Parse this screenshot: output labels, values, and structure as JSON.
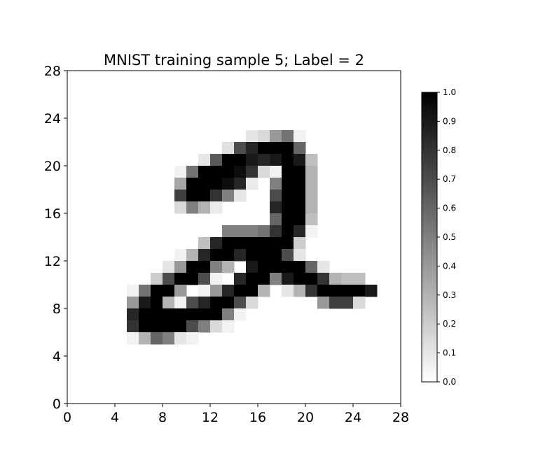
{
  "chart_data": {
    "type": "heatmap",
    "title": "MNIST training sample 5; Label = 2",
    "xlabel": "",
    "ylabel": "",
    "xlim": [
      0,
      28
    ],
    "ylim": [
      0,
      28
    ],
    "x_ticks": [
      "0",
      "4",
      "8",
      "12",
      "16",
      "20",
      "24",
      "28"
    ],
    "y_ticks": [
      "0",
      "4",
      "8",
      "12",
      "16",
      "20",
      "24",
      "28"
    ],
    "colormap": "gray_r",
    "colorbar": {
      "range": [
        0,
        1
      ],
      "ticks": [
        "0.0",
        "0.1",
        "0.2",
        "0.3",
        "0.4",
        "0.5",
        "0.6",
        "0.7",
        "0.8",
        "0.9",
        "1.0"
      ]
    },
    "grid": false,
    "rows_top_to_bottom": [
      [
        0,
        0,
        0,
        0,
        0,
        0,
        0,
        0,
        0,
        0,
        0,
        0,
        0,
        0,
        0,
        0,
        0,
        0,
        0,
        0,
        0,
        0,
        0,
        0,
        0,
        0,
        0,
        0
      ],
      [
        0,
        0,
        0,
        0,
        0,
        0,
        0,
        0,
        0,
        0,
        0,
        0,
        0,
        0,
        0,
        0,
        0,
        0,
        0,
        0,
        0,
        0,
        0,
        0,
        0,
        0,
        0,
        0
      ],
      [
        0,
        0,
        0,
        0,
        0,
        0,
        0,
        0,
        0,
        0,
        0,
        0,
        0,
        0,
        0,
        0,
        0,
        0,
        0,
        0,
        0,
        0,
        0,
        0,
        0,
        0,
        0,
        0
      ],
      [
        0,
        0,
        0,
        0,
        0,
        0,
        0,
        0,
        0,
        0,
        0,
        0,
        0,
        0,
        0,
        0,
        0,
        0,
        0,
        0,
        0,
        0,
        0,
        0,
        0,
        0,
        0,
        0
      ],
      [
        0,
        0,
        0,
        0,
        0,
        0,
        0,
        0,
        0,
        0,
        0,
        0,
        0,
        0,
        0,
        0,
        0,
        0,
        0,
        0,
        0,
        0,
        0,
        0,
        0,
        0,
        0,
        0
      ],
      [
        0,
        0,
        0,
        0,
        0,
        0,
        0,
        0,
        0,
        0,
        0,
        0,
        0,
        0,
        0,
        0.1,
        0.15,
        0.4,
        0.55,
        0.05,
        0,
        0,
        0,
        0,
        0,
        0,
        0,
        0
      ],
      [
        0,
        0,
        0,
        0,
        0,
        0,
        0,
        0,
        0,
        0,
        0,
        0,
        0,
        0.12,
        0.7,
        0.85,
        1,
        1,
        1,
        0.6,
        0,
        0,
        0,
        0,
        0,
        0,
        0,
        0
      ],
      [
        0,
        0,
        0,
        0,
        0,
        0,
        0,
        0,
        0,
        0,
        0,
        0.1,
        0.65,
        1,
        1,
        0.9,
        0.85,
        0.9,
        1,
        0.9,
        0.25,
        0,
        0,
        0,
        0,
        0,
        0,
        0
      ],
      [
        0,
        0,
        0,
        0,
        0,
        0,
        0,
        0,
        0,
        0.05,
        0.55,
        1,
        1,
        1,
        0.95,
        0.8,
        0.15,
        0.05,
        1,
        1,
        0.3,
        0,
        0,
        0,
        0,
        0,
        0,
        0
      ],
      [
        0,
        0,
        0,
        0,
        0,
        0,
        0,
        0,
        0,
        0.35,
        1,
        1,
        1,
        0.95,
        0.85,
        0.08,
        0,
        0.5,
        1,
        1,
        0.3,
        0,
        0,
        0,
        0,
        0,
        0,
        0
      ],
      [
        0,
        0,
        0,
        0,
        0,
        0,
        0,
        0,
        0,
        0.75,
        1,
        1,
        0.8,
        0.5,
        0.1,
        0,
        0,
        0.7,
        1,
        1,
        0.3,
        0,
        0,
        0,
        0,
        0,
        0,
        0
      ],
      [
        0,
        0,
        0,
        0,
        0,
        0,
        0,
        0,
        0,
        0.15,
        0.5,
        0.3,
        0.08,
        0,
        0,
        0,
        0,
        0.85,
        1,
        1,
        0.3,
        0,
        0,
        0,
        0,
        0,
        0,
        0
      ],
      [
        0,
        0,
        0,
        0,
        0,
        0,
        0,
        0,
        0,
        0,
        0,
        0,
        0,
        0,
        0,
        0,
        0,
        0.6,
        1,
        1,
        0.25,
        0,
        0,
        0,
        0,
        0,
        0,
        0
      ],
      [
        0,
        0,
        0,
        0,
        0,
        0,
        0,
        0,
        0,
        0,
        0,
        0,
        0,
        0.5,
        0.5,
        0.5,
        0.55,
        0.8,
        1,
        0.85,
        0.05,
        0,
        0,
        0,
        0,
        0,
        0,
        0
      ],
      [
        0,
        0,
        0,
        0,
        0,
        0,
        0,
        0,
        0,
        0,
        0,
        0.25,
        0.85,
        1,
        1,
        1,
        1,
        1,
        1,
        0.2,
        0,
        0,
        0,
        0,
        0,
        0,
        0,
        0
      ],
      [
        0,
        0,
        0,
        0,
        0,
        0,
        0,
        0,
        0,
        0.05,
        0.3,
        0.85,
        1,
        1,
        0.85,
        1,
        1,
        1,
        0.7,
        0.1,
        0,
        0,
        0,
        0,
        0,
        0,
        0,
        0
      ],
      [
        0,
        0,
        0,
        0,
        0,
        0,
        0,
        0,
        0.1,
        0.4,
        1,
        1,
        0.5,
        0.3,
        0,
        0.9,
        1,
        1,
        1,
        1,
        0.6,
        0.1,
        0,
        0,
        0,
        0,
        0,
        0
      ],
      [
        0,
        0,
        0,
        0,
        0,
        0,
        0,
        0.2,
        0.7,
        1,
        1,
        0.7,
        0.05,
        0,
        0.85,
        1,
        1,
        0.5,
        0.9,
        1,
        1,
        0.8,
        0.3,
        0.25,
        0.25,
        0,
        0,
        0
      ],
      [
        0,
        0,
        0,
        0,
        0,
        0.05,
        0.55,
        1,
        1,
        0.4,
        0,
        0.05,
        0.4,
        0.85,
        1,
        1,
        0.3,
        0,
        0.1,
        0.3,
        0.8,
        1,
        1,
        1,
        1,
        0.9,
        0,
        0
      ],
      [
        0,
        0,
        0,
        0,
        0,
        0.4,
        0.9,
        1,
        0.3,
        0.05,
        0.7,
        0.85,
        1,
        1,
        0.7,
        0.15,
        0,
        0,
        0,
        0,
        0,
        0.4,
        0.75,
        0.75,
        0.15,
        0,
        0,
        0
      ],
      [
        0,
        0,
        0,
        0,
        0,
        0.85,
        1,
        1,
        1,
        1,
        1,
        1,
        1,
        0.5,
        0.05,
        0,
        0,
        0,
        0,
        0,
        0,
        0,
        0,
        0,
        0,
        0,
        0,
        0
      ],
      [
        0,
        0,
        0,
        0,
        0,
        0.8,
        1,
        1,
        1,
        1,
        0.7,
        0.5,
        0.15,
        0.05,
        0,
        0,
        0,
        0,
        0,
        0,
        0,
        0,
        0,
        0,
        0,
        0,
        0,
        0
      ],
      [
        0,
        0,
        0,
        0,
        0,
        0.05,
        0.3,
        0.6,
        0.5,
        0.1,
        0.05,
        0,
        0,
        0,
        0,
        0,
        0,
        0,
        0,
        0,
        0,
        0,
        0,
        0,
        0,
        0,
        0,
        0
      ],
      [
        0,
        0,
        0,
        0,
        0,
        0,
        0,
        0,
        0,
        0,
        0,
        0,
        0,
        0,
        0,
        0,
        0,
        0,
        0,
        0,
        0,
        0,
        0,
        0,
        0,
        0,
        0,
        0
      ],
      [
        0,
        0,
        0,
        0,
        0,
        0,
        0,
        0,
        0,
        0,
        0,
        0,
        0,
        0,
        0,
        0,
        0,
        0,
        0,
        0,
        0,
        0,
        0,
        0,
        0,
        0,
        0,
        0
      ],
      [
        0,
        0,
        0,
        0,
        0,
        0,
        0,
        0,
        0,
        0,
        0,
        0,
        0,
        0,
        0,
        0,
        0,
        0,
        0,
        0,
        0,
        0,
        0,
        0,
        0,
        0,
        0,
        0
      ],
      [
        0,
        0,
        0,
        0,
        0,
        0,
        0,
        0,
        0,
        0,
        0,
        0,
        0,
        0,
        0,
        0,
        0,
        0,
        0,
        0,
        0,
        0,
        0,
        0,
        0,
        0,
        0,
        0
      ],
      [
        0,
        0,
        0,
        0,
        0,
        0,
        0,
        0,
        0,
        0,
        0,
        0,
        0,
        0,
        0,
        0,
        0,
        0,
        0,
        0,
        0,
        0,
        0,
        0,
        0,
        0,
        0,
        0
      ]
    ]
  }
}
